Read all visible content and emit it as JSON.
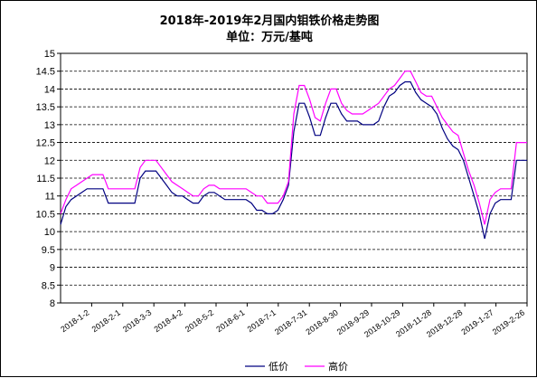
{
  "chart_data": {
    "type": "line",
    "title": "2018年-2019年2月国内钼铁价格走势图",
    "subtitle": "单位：万元/基吨",
    "xlabel": "",
    "ylabel": "",
    "ylim": [
      8,
      15
    ],
    "yticks": [
      "8",
      "8.5",
      "9",
      "9.5",
      "10",
      "10.5",
      "11",
      "11.5",
      "12",
      "12.5",
      "13",
      "13.5",
      "14",
      "14.5",
      "15"
    ],
    "xticks": [
      "2018-1-2",
      "2018-2-1",
      "2018-3-3",
      "2018-4-2",
      "2018-5-2",
      "2018-6-1",
      "2018-7-1",
      "2018-7-31",
      "2018-8-30",
      "2018-9-29",
      "2018-10-29",
      "2018-11-28",
      "2018-12-28",
      "2019-1-27",
      "2019-2-26"
    ],
    "grid": true,
    "legend": "bottom",
    "series": [
      {
        "name": "低价",
        "color": "#000080",
        "values": [
          10.2,
          10.7,
          10.9,
          11.0,
          11.1,
          11.2,
          11.2,
          11.2,
          11.2,
          10.8,
          10.8,
          10.8,
          10.8,
          10.8,
          10.8,
          11.5,
          11.7,
          11.7,
          11.7,
          11.5,
          11.3,
          11.1,
          11.0,
          11.0,
          10.9,
          10.8,
          10.8,
          11.0,
          11.1,
          11.1,
          11.0,
          10.9,
          10.9,
          10.9,
          10.9,
          10.9,
          10.8,
          10.6,
          10.6,
          10.5,
          10.5,
          10.6,
          10.9,
          11.3,
          12.8,
          13.6,
          13.6,
          13.2,
          12.7,
          12.7,
          13.2,
          13.6,
          13.6,
          13.3,
          13.1,
          13.1,
          13.1,
          13.0,
          13.0,
          13.0,
          13.1,
          13.5,
          13.8,
          13.9,
          14.1,
          14.2,
          14.2,
          13.9,
          13.7,
          13.6,
          13.5,
          13.3,
          12.9,
          12.6,
          12.4,
          12.3,
          12.0,
          11.5,
          11.0,
          10.5,
          9.8,
          10.5,
          10.8,
          10.9,
          10.9,
          10.9,
          12.0,
          12.0,
          12.0
        ]
      },
      {
        "name": "高价",
        "color": "#ff00ff",
        "values": [
          10.5,
          10.9,
          11.2,
          11.3,
          11.4,
          11.5,
          11.6,
          11.6,
          11.6,
          11.2,
          11.2,
          11.2,
          11.2,
          11.2,
          11.2,
          11.8,
          12.0,
          12.0,
          12.0,
          11.8,
          11.6,
          11.4,
          11.3,
          11.2,
          11.1,
          11.0,
          11.0,
          11.2,
          11.3,
          11.3,
          11.2,
          11.2,
          11.2,
          11.2,
          11.2,
          11.2,
          11.1,
          11.0,
          11.0,
          10.8,
          10.8,
          10.8,
          11.0,
          11.4,
          13.3,
          14.1,
          14.1,
          13.7,
          13.2,
          13.1,
          13.6,
          14.0,
          14.0,
          13.6,
          13.4,
          13.3,
          13.3,
          13.3,
          13.4,
          13.5,
          13.6,
          13.8,
          14.0,
          14.1,
          14.3,
          14.5,
          14.5,
          14.2,
          13.9,
          13.8,
          13.8,
          13.5,
          13.2,
          13.0,
          12.8,
          12.7,
          12.2,
          11.7,
          11.3,
          10.8,
          10.2,
          10.9,
          11.1,
          11.2,
          11.2,
          11.2,
          12.5,
          12.5,
          12.5
        ]
      }
    ]
  }
}
